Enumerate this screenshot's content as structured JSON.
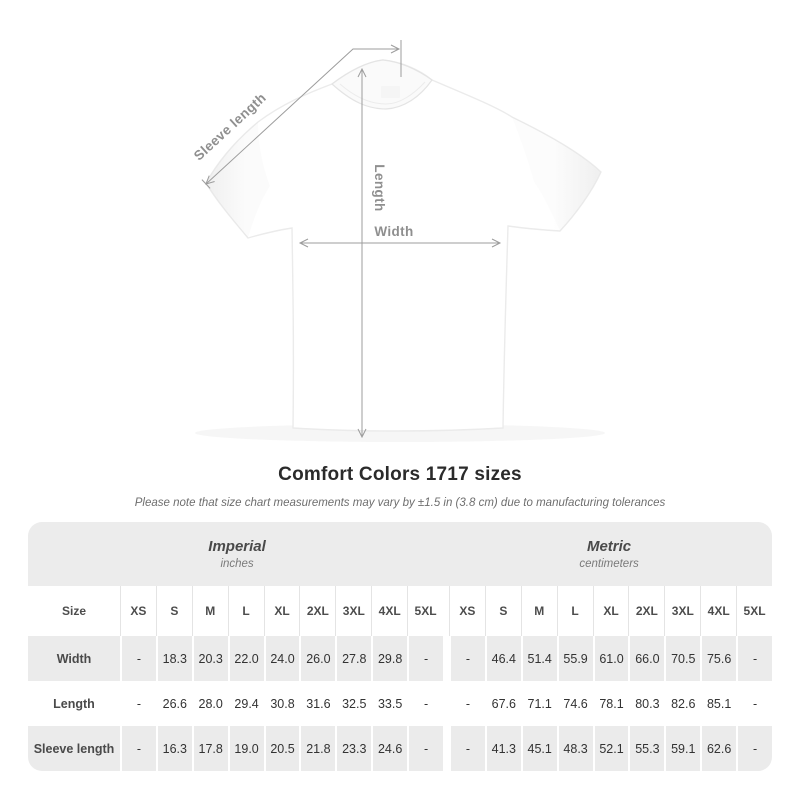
{
  "diagram": {
    "labels": {
      "width": "Width",
      "length": "Length",
      "sleeve": "Sleeve length"
    },
    "line_color": "#9c9c9c",
    "label_color": "#8f8f8f"
  },
  "title": "Comfort Colors 1717 sizes",
  "subtitle": "Please note that size chart measurements may vary by ±1.5 in (3.8 cm) due to manufacturing tolerances",
  "table": {
    "size_header": "Size",
    "groups": [
      {
        "label": "Imperial",
        "unit": "inches"
      },
      {
        "label": "Metric",
        "unit": "centimeters"
      }
    ],
    "sizes": [
      "XS",
      "S",
      "M",
      "L",
      "XL",
      "2XL",
      "3XL",
      "4XL",
      "5XL"
    ],
    "rows": [
      {
        "label": "Width",
        "imperial": [
          "-",
          "18.3",
          "20.3",
          "22.0",
          "24.0",
          "26.0",
          "27.8",
          "29.8",
          "-"
        ],
        "metric": [
          "-",
          "46.4",
          "51.4",
          "55.9",
          "61.0",
          "66.0",
          "70.5",
          "75.6",
          "-"
        ]
      },
      {
        "label": "Length",
        "imperial": [
          "-",
          "26.6",
          "28.0",
          "29.4",
          "30.8",
          "31.6",
          "32.5",
          "33.5",
          "-"
        ],
        "metric": [
          "-",
          "67.6",
          "71.1",
          "74.6",
          "78.1",
          "80.3",
          "82.6",
          "85.1",
          "-"
        ]
      },
      {
        "label": "Sleeve length",
        "imperial": [
          "-",
          "16.3",
          "17.8",
          "19.0",
          "20.5",
          "21.8",
          "23.3",
          "24.6",
          "-"
        ],
        "metric": [
          "-",
          "41.3",
          "45.1",
          "48.3",
          "52.1",
          "55.3",
          "59.1",
          "62.6",
          "-"
        ]
      }
    ]
  },
  "colors": {
    "band_bg": "#ececec",
    "stripe_bg": "#ebebeb",
    "title_text": "#2b2b2b",
    "value_text": "#333333",
    "measure_gray": "#9c9c9c"
  }
}
